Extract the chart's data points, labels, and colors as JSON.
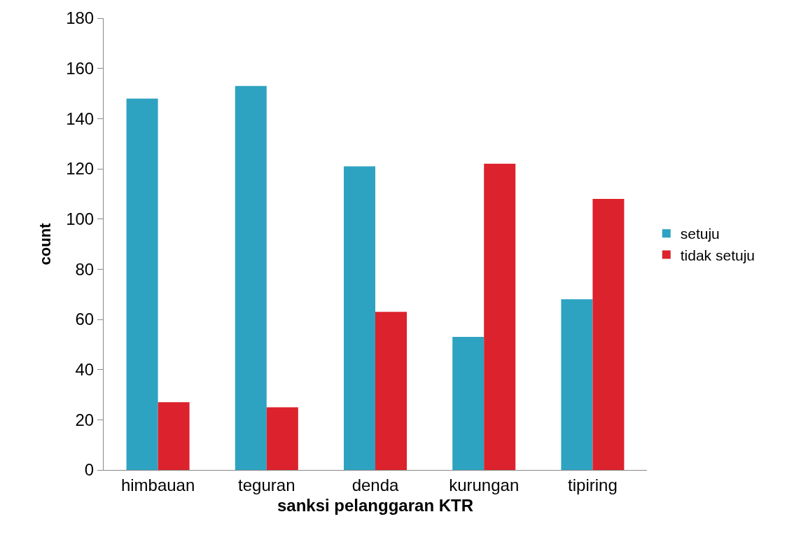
{
  "chart_data": {
    "type": "bar",
    "xlabel": "sanksi pelanggaran KTR",
    "ylabel": "count",
    "categories": [
      "himbauan",
      "teguran",
      "denda",
      "kurungan",
      "tipiring"
    ],
    "series": [
      {
        "name": "setuju",
        "color": "#2ea3c1",
        "values": [
          148,
          153,
          121,
          53,
          68
        ]
      },
      {
        "name": "tidak setuju",
        "color": "#dc222c",
        "values": [
          27,
          25,
          63,
          122,
          108
        ]
      }
    ],
    "ylim": [
      0,
      180
    ],
    "yticks": [
      0,
      20,
      40,
      60,
      80,
      100,
      120,
      140,
      160,
      180
    ],
    "legend": "right"
  }
}
